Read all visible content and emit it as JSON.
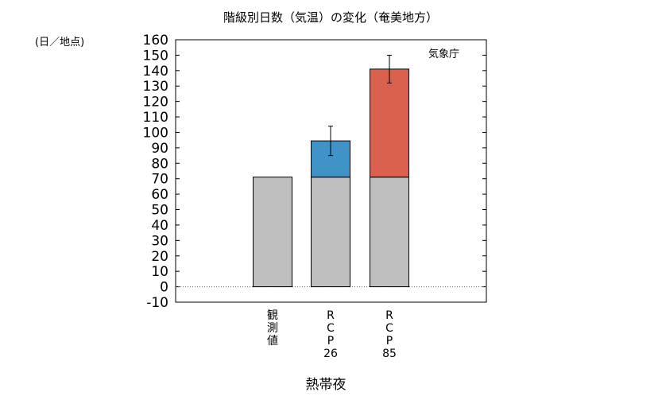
{
  "chart_data": {
    "type": "bar",
    "title": "階級別日数（気温）の変化（奄美地方）",
    "ylabel": "(日／地点)",
    "xlabel": "熱帯夜",
    "source": "気象庁",
    "ylim": [
      -10,
      160
    ],
    "yticks": [
      -10,
      0,
      10,
      20,
      30,
      40,
      50,
      60,
      70,
      80,
      90,
      100,
      110,
      120,
      130,
      140,
      150,
      160
    ],
    "categories": [
      {
        "label_lines": [
          "観",
          "測",
          "値"
        ]
      },
      {
        "label_lines": [
          "R",
          "C",
          "P",
          "26"
        ]
      },
      {
        "label_lines": [
          "R",
          "C",
          "P",
          "85"
        ]
      }
    ],
    "series": [
      {
        "values": [
          71,
          71,
          71
        ],
        "color": "#bfbfbf"
      },
      {
        "values": [
          0,
          23.5,
          70
        ],
        "color": "#3f93c6"
      }
    ],
    "error_bars": [
      null,
      {
        "low": 85,
        "high": 104
      },
      {
        "low": 132,
        "high": 150
      }
    ]
  }
}
